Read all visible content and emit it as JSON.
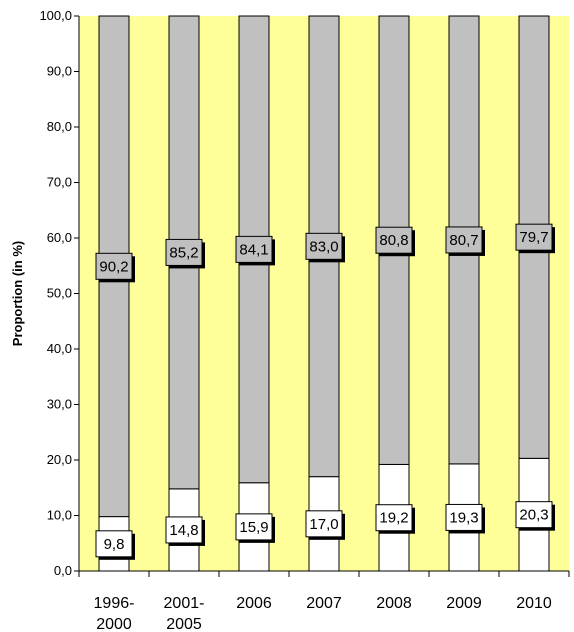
{
  "chart_data": {
    "type": "bar",
    "stacked": true,
    "title": "",
    "xlabel": "",
    "ylabel": "Proportion (in %)",
    "ylim": [
      0,
      100
    ],
    "yticks": [
      "0,0",
      "10,0",
      "20,0",
      "30,0",
      "40,0",
      "50,0",
      "60,0",
      "70,0",
      "80,0",
      "90,0",
      "100,0"
    ],
    "categories": [
      [
        "1996-",
        "2000"
      ],
      [
        "2001-",
        "2005"
      ],
      [
        "2006"
      ],
      [
        "2007"
      ],
      [
        "2008"
      ],
      [
        "2009"
      ],
      [
        "2010"
      ]
    ],
    "series": [
      {
        "values": [
          9.8,
          14.8,
          15.9,
          17.0,
          19.2,
          19.3,
          20.3
        ],
        "labels": [
          "9,8",
          "14,8",
          "15,9",
          "17,0",
          "19,2",
          "19,3",
          "20,3"
        ],
        "color": "#ffffff"
      },
      {
        "values": [
          90.2,
          85.2,
          84.1,
          83.0,
          80.8,
          80.7,
          79.7
        ],
        "labels": [
          "90,2",
          "85,2",
          "84,1",
          "83,0",
          "80,8",
          "80,7",
          "79,7"
        ],
        "color": "#c0c0c0"
      }
    ],
    "plot_background": "#ffff99",
    "grid": false,
    "legend": "none"
  }
}
